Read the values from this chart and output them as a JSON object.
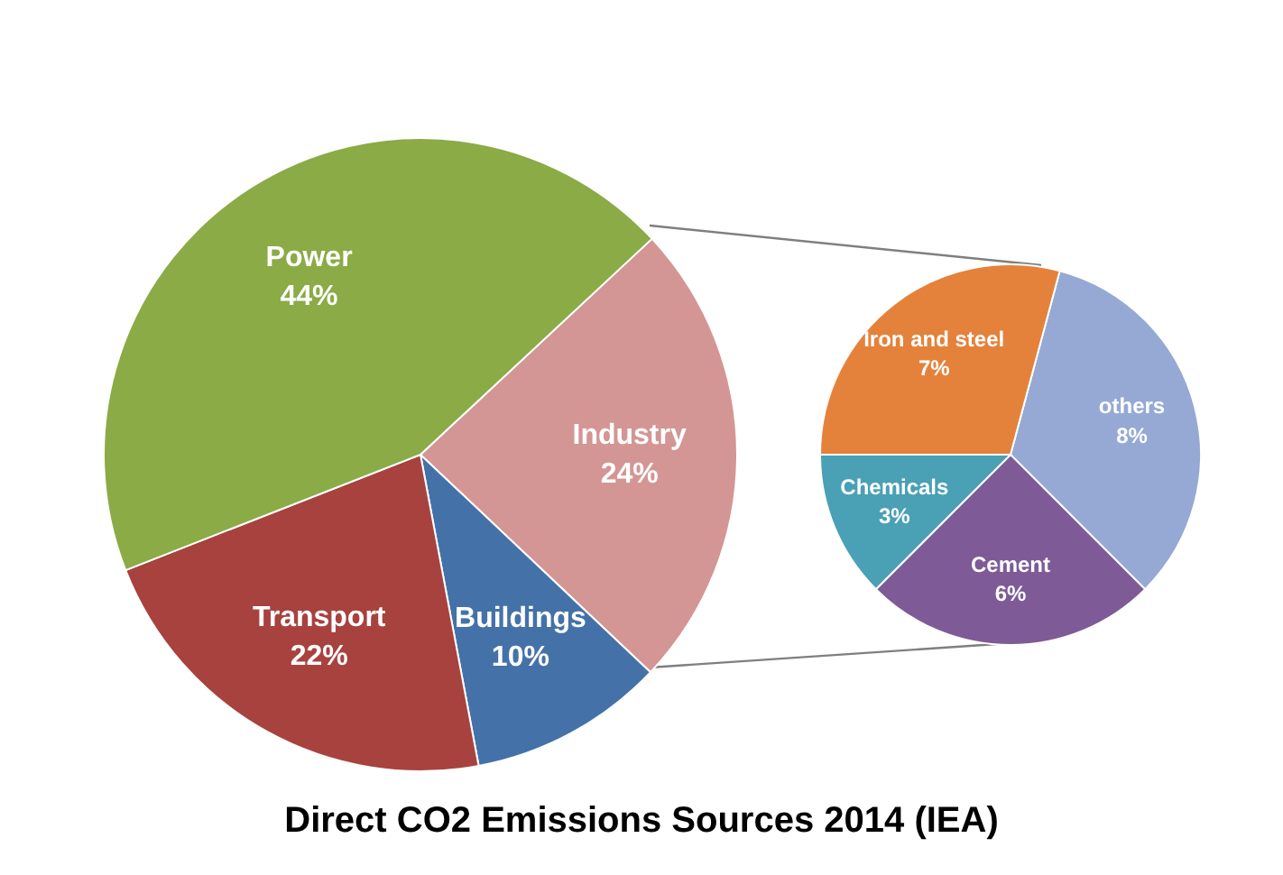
{
  "chart_data": [
    {
      "type": "pie",
      "title": "Direct CO2 Emissions Sources 2014 (IEA)",
      "categories": [
        "Industry",
        "Buildings",
        "Transport",
        "Power"
      ],
      "values": [
        24,
        10,
        22,
        44
      ],
      "colors": [
        "#d39694",
        "#4472a8",
        "#a8423f",
        "#8aab46"
      ],
      "value_labels": [
        "24%",
        "10%",
        "22%",
        "44%"
      ]
    },
    {
      "type": "pie",
      "categories": [
        "others",
        "Cement",
        "Chemicals",
        "Iron and steel"
      ],
      "values": [
        8,
        6,
        3,
        7
      ],
      "colors": [
        "#95a9d4",
        "#7e5b97",
        "#4aa0b5",
        "#e4823b"
      ],
      "value_labels": [
        "8%",
        "6%",
        "3%",
        "7%"
      ]
    }
  ]
}
